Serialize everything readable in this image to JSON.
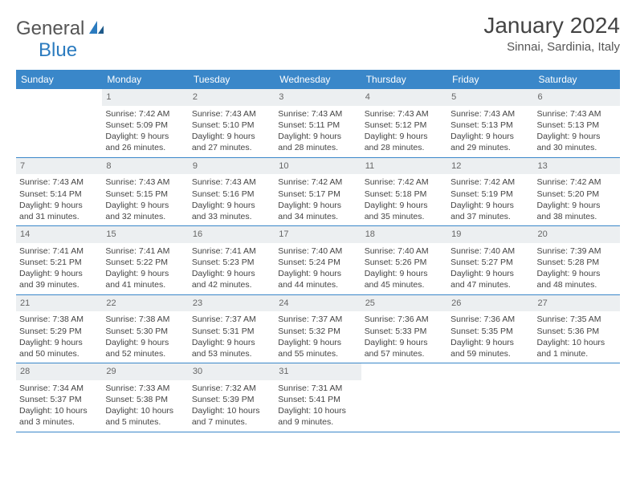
{
  "logo": {
    "text1": "General",
    "text2": "Blue"
  },
  "title": "January 2024",
  "location": "Sinnai, Sardinia, Italy",
  "colors": {
    "header_bg": "#3a87c9",
    "header_text": "#ffffff",
    "daynum_bg": "#eceff1",
    "text": "#444444",
    "logo_gray": "#555555",
    "logo_blue": "#2b7bbf",
    "week_border": "#3a87c9",
    "background": "#ffffff"
  },
  "day_names": [
    "Sunday",
    "Monday",
    "Tuesday",
    "Wednesday",
    "Thursday",
    "Friday",
    "Saturday"
  ],
  "weeks": [
    [
      {
        "n": "",
        "lines": []
      },
      {
        "n": "1",
        "lines": [
          "Sunrise: 7:42 AM",
          "Sunset: 5:09 PM",
          "Daylight: 9 hours",
          "and 26 minutes."
        ]
      },
      {
        "n": "2",
        "lines": [
          "Sunrise: 7:43 AM",
          "Sunset: 5:10 PM",
          "Daylight: 9 hours",
          "and 27 minutes."
        ]
      },
      {
        "n": "3",
        "lines": [
          "Sunrise: 7:43 AM",
          "Sunset: 5:11 PM",
          "Daylight: 9 hours",
          "and 28 minutes."
        ]
      },
      {
        "n": "4",
        "lines": [
          "Sunrise: 7:43 AM",
          "Sunset: 5:12 PM",
          "Daylight: 9 hours",
          "and 28 minutes."
        ]
      },
      {
        "n": "5",
        "lines": [
          "Sunrise: 7:43 AM",
          "Sunset: 5:13 PM",
          "Daylight: 9 hours",
          "and 29 minutes."
        ]
      },
      {
        "n": "6",
        "lines": [
          "Sunrise: 7:43 AM",
          "Sunset: 5:13 PM",
          "Daylight: 9 hours",
          "and 30 minutes."
        ]
      }
    ],
    [
      {
        "n": "7",
        "lines": [
          "Sunrise: 7:43 AM",
          "Sunset: 5:14 PM",
          "Daylight: 9 hours",
          "and 31 minutes."
        ]
      },
      {
        "n": "8",
        "lines": [
          "Sunrise: 7:43 AM",
          "Sunset: 5:15 PM",
          "Daylight: 9 hours",
          "and 32 minutes."
        ]
      },
      {
        "n": "9",
        "lines": [
          "Sunrise: 7:43 AM",
          "Sunset: 5:16 PM",
          "Daylight: 9 hours",
          "and 33 minutes."
        ]
      },
      {
        "n": "10",
        "lines": [
          "Sunrise: 7:42 AM",
          "Sunset: 5:17 PM",
          "Daylight: 9 hours",
          "and 34 minutes."
        ]
      },
      {
        "n": "11",
        "lines": [
          "Sunrise: 7:42 AM",
          "Sunset: 5:18 PM",
          "Daylight: 9 hours",
          "and 35 minutes."
        ]
      },
      {
        "n": "12",
        "lines": [
          "Sunrise: 7:42 AM",
          "Sunset: 5:19 PM",
          "Daylight: 9 hours",
          "and 37 minutes."
        ]
      },
      {
        "n": "13",
        "lines": [
          "Sunrise: 7:42 AM",
          "Sunset: 5:20 PM",
          "Daylight: 9 hours",
          "and 38 minutes."
        ]
      }
    ],
    [
      {
        "n": "14",
        "lines": [
          "Sunrise: 7:41 AM",
          "Sunset: 5:21 PM",
          "Daylight: 9 hours",
          "and 39 minutes."
        ]
      },
      {
        "n": "15",
        "lines": [
          "Sunrise: 7:41 AM",
          "Sunset: 5:22 PM",
          "Daylight: 9 hours",
          "and 41 minutes."
        ]
      },
      {
        "n": "16",
        "lines": [
          "Sunrise: 7:41 AM",
          "Sunset: 5:23 PM",
          "Daylight: 9 hours",
          "and 42 minutes."
        ]
      },
      {
        "n": "17",
        "lines": [
          "Sunrise: 7:40 AM",
          "Sunset: 5:24 PM",
          "Daylight: 9 hours",
          "and 44 minutes."
        ]
      },
      {
        "n": "18",
        "lines": [
          "Sunrise: 7:40 AM",
          "Sunset: 5:26 PM",
          "Daylight: 9 hours",
          "and 45 minutes."
        ]
      },
      {
        "n": "19",
        "lines": [
          "Sunrise: 7:40 AM",
          "Sunset: 5:27 PM",
          "Daylight: 9 hours",
          "and 47 minutes."
        ]
      },
      {
        "n": "20",
        "lines": [
          "Sunrise: 7:39 AM",
          "Sunset: 5:28 PM",
          "Daylight: 9 hours",
          "and 48 minutes."
        ]
      }
    ],
    [
      {
        "n": "21",
        "lines": [
          "Sunrise: 7:38 AM",
          "Sunset: 5:29 PM",
          "Daylight: 9 hours",
          "and 50 minutes."
        ]
      },
      {
        "n": "22",
        "lines": [
          "Sunrise: 7:38 AM",
          "Sunset: 5:30 PM",
          "Daylight: 9 hours",
          "and 52 minutes."
        ]
      },
      {
        "n": "23",
        "lines": [
          "Sunrise: 7:37 AM",
          "Sunset: 5:31 PM",
          "Daylight: 9 hours",
          "and 53 minutes."
        ]
      },
      {
        "n": "24",
        "lines": [
          "Sunrise: 7:37 AM",
          "Sunset: 5:32 PM",
          "Daylight: 9 hours",
          "and 55 minutes."
        ]
      },
      {
        "n": "25",
        "lines": [
          "Sunrise: 7:36 AM",
          "Sunset: 5:33 PM",
          "Daylight: 9 hours",
          "and 57 minutes."
        ]
      },
      {
        "n": "26",
        "lines": [
          "Sunrise: 7:36 AM",
          "Sunset: 5:35 PM",
          "Daylight: 9 hours",
          "and 59 minutes."
        ]
      },
      {
        "n": "27",
        "lines": [
          "Sunrise: 7:35 AM",
          "Sunset: 5:36 PM",
          "Daylight: 10 hours",
          "and 1 minute."
        ]
      }
    ],
    [
      {
        "n": "28",
        "lines": [
          "Sunrise: 7:34 AM",
          "Sunset: 5:37 PM",
          "Daylight: 10 hours",
          "and 3 minutes."
        ]
      },
      {
        "n": "29",
        "lines": [
          "Sunrise: 7:33 AM",
          "Sunset: 5:38 PM",
          "Daylight: 10 hours",
          "and 5 minutes."
        ]
      },
      {
        "n": "30",
        "lines": [
          "Sunrise: 7:32 AM",
          "Sunset: 5:39 PM",
          "Daylight: 10 hours",
          "and 7 minutes."
        ]
      },
      {
        "n": "31",
        "lines": [
          "Sunrise: 7:31 AM",
          "Sunset: 5:41 PM",
          "Daylight: 10 hours",
          "and 9 minutes."
        ]
      },
      {
        "n": "",
        "lines": []
      },
      {
        "n": "",
        "lines": []
      },
      {
        "n": "",
        "lines": []
      }
    ]
  ]
}
